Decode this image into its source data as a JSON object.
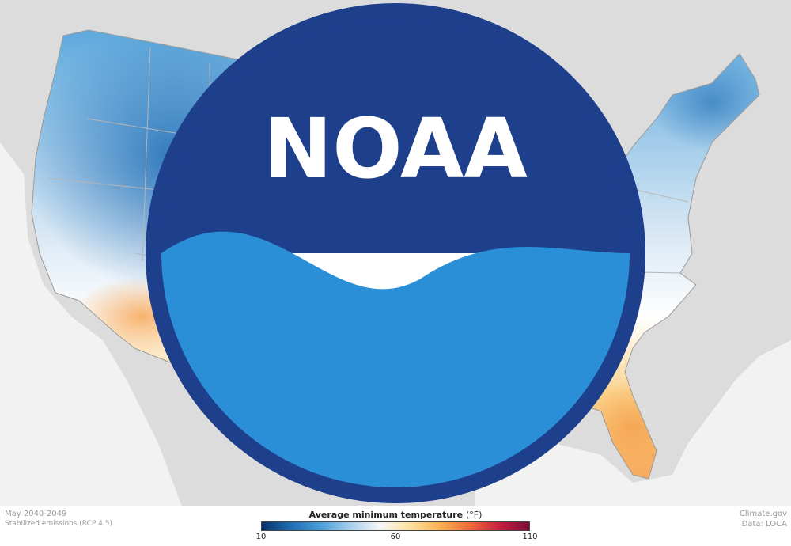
{
  "map": {
    "period": "May 2040-2049",
    "scenario": "Stabilized emissions (RCP 4.5)",
    "region": "Contiguous United States",
    "variable": "Average minimum temperature"
  },
  "legend": {
    "title": "Average minimum temperature",
    "unit": "(°F)",
    "ticks": [
      "10",
      "60",
      "110"
    ],
    "colors": [
      "#08306b",
      "#1f6fb4",
      "#4a9fd8",
      "#a9cfec",
      "#f7f7f7",
      "#fde0a0",
      "#f9b04f",
      "#ef6a3a",
      "#c81f3e",
      "#7a0b35"
    ]
  },
  "credits": {
    "source": "Climate.gov",
    "data": "Data: LOCA"
  },
  "logo": {
    "name": "noaa-logo",
    "text": "NOAA"
  },
  "colors": {
    "land_background": "#dcdcdc",
    "water": "#f2f2f2",
    "state_border": "#b5b5b5"
  }
}
